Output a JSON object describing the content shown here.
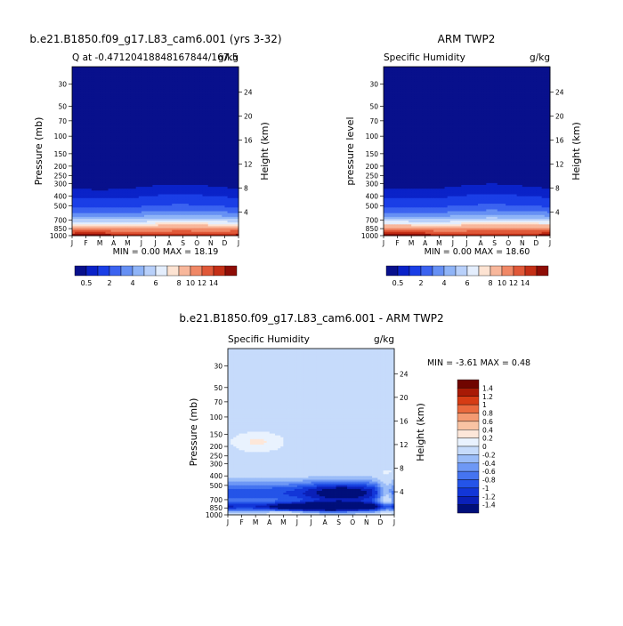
{
  "panels": [
    {
      "id": "model",
      "title_left": "b.e21.B1850.f09_g17.L83_cam6.001 (yrs 3-32)",
      "subtitle_left": "Q at -0.47120418848167844/167.5",
      "units": "g/kg",
      "ylabel": "Pressure (mb)",
      "ylabel_right": "Height (km)",
      "minmax": "MIN =    0.00 MAX =   18.19"
    },
    {
      "id": "obs",
      "title_center": "ARM TWP2",
      "subtitle_left": "Specific Humidity",
      "units": "g/kg",
      "ylabel": "pressure level",
      "ylabel_right": "Height (km)",
      "minmax": "MIN =    0.00 MAX =   18.60"
    },
    {
      "id": "diff",
      "title_center": "b.e21.B1850.f09_g17.L83_cam6.001 - ARM TWP2",
      "subtitle_left": "Specific Humidity",
      "units": "g/kg",
      "ylabel": "Pressure (mb)",
      "ylabel_right": "Height (km)",
      "minmax": "MIN =   -3.61 MAX =    0.48"
    }
  ],
  "chart_data": [
    {
      "type": "heatmap",
      "title": "b.e21.B1850.f09_g17.L83_cam6.001 (yrs 3-32)",
      "subtitle": "Q at -0.47120418848167844/167.5",
      "units": "g/kg",
      "x_ticks": [
        "J",
        "F",
        "M",
        "A",
        "M",
        "J",
        "J",
        "A",
        "S",
        "O",
        "N",
        "D",
        "J"
      ],
      "pressure_ticks": [
        30,
        50,
        70,
        100,
        150,
        200,
        250,
        300,
        400,
        500,
        700,
        850,
        1000
      ],
      "height_ticks": [
        4,
        8,
        12,
        16,
        20,
        24
      ],
      "ylabel": "Pressure (mb)",
      "ylabel_right": "Height (km)",
      "min": 0.0,
      "max": 18.19,
      "colorbar_labels": [
        "0.5",
        "2",
        "4",
        "6",
        "8",
        "10",
        "12",
        "14"
      ]
    },
    {
      "type": "heatmap",
      "title": "ARM TWP2",
      "subtitle": "Specific Humidity",
      "units": "g/kg",
      "x_ticks": [
        "J",
        "F",
        "M",
        "A",
        "M",
        "J",
        "J",
        "A",
        "S",
        "O",
        "N",
        "D",
        "J"
      ],
      "pressure_ticks": [
        30,
        50,
        70,
        100,
        150,
        200,
        250,
        300,
        400,
        500,
        700,
        850,
        1000
      ],
      "height_ticks": [
        4,
        8,
        12,
        16,
        20,
        24
      ],
      "ylabel": "pressure level",
      "ylabel_right": "Height (km)",
      "min": 0.0,
      "max": 18.6,
      "colorbar_labels": [
        "0.5",
        "2",
        "4",
        "6",
        "8",
        "10",
        "12",
        "14"
      ]
    },
    {
      "type": "heatmap",
      "title": "b.e21.B1850.f09_g17.L83_cam6.001 - ARM TWP2",
      "subtitle": "Specific Humidity",
      "units": "g/kg",
      "x_ticks": [
        "J",
        "F",
        "M",
        "A",
        "M",
        "J",
        "J",
        "A",
        "S",
        "O",
        "N",
        "D",
        "J"
      ],
      "pressure_ticks": [
        30,
        50,
        70,
        100,
        150,
        200,
        250,
        300,
        400,
        500,
        700,
        850,
        1000
      ],
      "height_ticks": [
        4,
        8,
        12,
        16,
        20,
        24
      ],
      "ylabel": "Pressure (mb)",
      "ylabel_right": "Height (km)",
      "min": -3.61,
      "max": 0.48,
      "colorbar_labels": [
        "1.4",
        "1.2",
        "1",
        "0.8",
        "0.6",
        "0.4",
        "0.2",
        "0",
        "-0.2",
        "-0.4",
        "-0.6",
        "-0.8",
        "-1",
        "-1.2",
        "-1.4"
      ]
    }
  ],
  "colors": {
    "abs_scale": [
      "#08108c",
      "#0a22c8",
      "#1a3ee6",
      "#3b63f0",
      "#6690f4",
      "#8fb4f7",
      "#b8d0fa",
      "#e4eefd",
      "#fde3d2",
      "#f8b79b",
      "#f08866",
      "#e05838",
      "#c42f16",
      "#8e0d06"
    ],
    "diff_scale": [
      "#000f7a",
      "#0a20b8",
      "#1236d8",
      "#2454e8",
      "#4574f0",
      "#6e98f5",
      "#9abcf8",
      "#c6dbfb",
      "#e9f2fe",
      "#fde7d9",
      "#f9c3a3",
      "#f49a72",
      "#ea6a3e",
      "#d63c14",
      "#a81a05",
      "#700500"
    ],
    "background_low": "#00008c",
    "diff_background": "#cfe4fb"
  }
}
